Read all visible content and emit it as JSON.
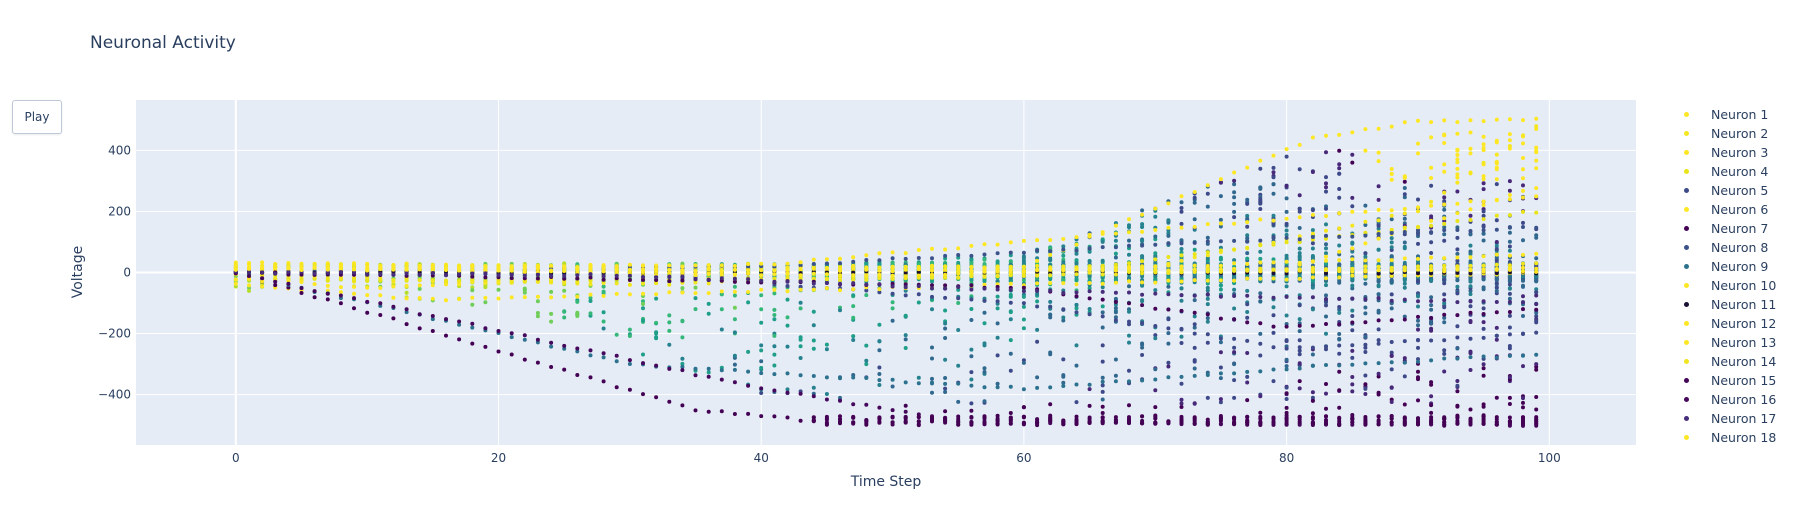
{
  "controls": {
    "play_label": "Play"
  },
  "chart_data": {
    "type": "scatter",
    "title": "Neuronal Activity",
    "xlabel": "Time Step",
    "ylabel": "Voltage",
    "xlim": [
      -7.6,
      106.6
    ],
    "ylim": [
      -565,
      565
    ],
    "x_ticks": [
      0,
      20,
      40,
      60,
      80,
      100
    ],
    "y_ticks": [
      -400,
      -200,
      0,
      200,
      400
    ],
    "grid": true,
    "legend_position": "right",
    "x_step": 1,
    "x_range": [
      0,
      99
    ],
    "colors": {
      "plot_bg": "#e5ecf6",
      "grid": "#ffffff",
      "text": "#2a3f5f"
    },
    "series": [
      {
        "name": "Neuron 1",
        "color": "#fde725",
        "envelope": {
          "x": [
            0,
            30,
            60,
            82,
            90,
            99
          ],
          "y": [
            30,
            20,
            18,
            440,
            495,
            500
          ]
        }
      },
      {
        "name": "Neuron 2",
        "color": "#f5e61f",
        "envelope": {
          "x": [
            0,
            40,
            70,
            90,
            99
          ],
          "y": [
            25,
            15,
            20,
            200,
            480
          ]
        }
      },
      {
        "name": "Neuron 3",
        "color": "#fde725",
        "envelope": {
          "x": [
            0,
            50,
            80,
            99
          ],
          "y": [
            10,
            5,
            10,
            280
          ]
        }
      },
      {
        "name": "Neuron 4",
        "color": "#e8e419",
        "envelope": {
          "x": [
            0,
            20,
            60,
            99
          ],
          "y": [
            -20,
            -30,
            -10,
            200
          ]
        }
      },
      {
        "name": "Neuron 5",
        "color": "#3e4a89",
        "envelope": {
          "x": [
            0,
            30,
            60,
            80,
            99
          ],
          "y": [
            0,
            -5,
            -100,
            -250,
            -200
          ]
        }
      },
      {
        "name": "Neuron 6",
        "color": "#fde725",
        "envelope": {
          "x": [
            0,
            15,
            40,
            99
          ],
          "y": [
            -40,
            -90,
            -60,
            0
          ]
        }
      },
      {
        "name": "Neuron 7",
        "color": "#440154",
        "envelope": {
          "x": [
            0,
            35,
            45,
            99
          ],
          "y": [
            0,
            -450,
            -490,
            -495
          ]
        }
      },
      {
        "name": "Neuron 8",
        "color": "#3b528b",
        "envelope": {
          "x": [
            0,
            40,
            70,
            99
          ],
          "y": [
            0,
            20,
            90,
            150
          ]
        }
      },
      {
        "name": "Neuron 9",
        "color": "#2c728e",
        "envelope": {
          "x": [
            0,
            30,
            60,
            85,
            99
          ],
          "y": [
            0,
            -300,
            -380,
            -300,
            -270
          ]
        }
      },
      {
        "name": "Neuron 10",
        "color": "#fde725",
        "envelope": {
          "x": [
            0,
            10,
            30,
            99
          ],
          "y": [
            -20,
            -50,
            -10,
            15
          ]
        }
      },
      {
        "name": "Neuron 11",
        "color": "#1a1033",
        "envelope": {
          "x": [
            0,
            99
          ],
          "y": [
            0,
            0
          ]
        }
      },
      {
        "name": "Neuron 12",
        "color": "#fde725",
        "envelope": {
          "x": [
            0,
            20,
            99
          ],
          "y": [
            20,
            10,
            5
          ]
        }
      },
      {
        "name": "Neuron 13",
        "color": "#fde725",
        "envelope": {
          "x": [
            0,
            50,
            99
          ],
          "y": [
            15,
            -10,
            60
          ]
        }
      },
      {
        "name": "Neuron 14",
        "color": "#f0e51e",
        "envelope": {
          "x": [
            0,
            30,
            99
          ],
          "y": [
            -10,
            -40,
            30
          ]
        }
      },
      {
        "name": "Neuron 15",
        "color": "#450457",
        "envelope": {
          "x": [
            0,
            40,
            60,
            80,
            99
          ],
          "y": [
            0,
            -30,
            -50,
            -180,
            -120
          ]
        }
      },
      {
        "name": "Neuron 16",
        "color": "#46085c",
        "envelope": {
          "x": [
            0,
            40,
            56,
            99
          ],
          "y": [
            0,
            -380,
            -490,
            -500
          ]
        }
      },
      {
        "name": "Neuron 17",
        "color": "#472d7b",
        "envelope": {
          "x": [
            0,
            30,
            60,
            99
          ],
          "y": [
            0,
            -10,
            -60,
            -100
          ]
        }
      },
      {
        "name": "Neuron 18",
        "color": "#fde725",
        "envelope": {
          "x": [
            0,
            40,
            99
          ],
          "y": [
            10,
            25,
            250
          ]
        }
      }
    ],
    "background_cloud": {
      "description_free": true,
      "palette": [
        "#fde725",
        "#b5de2b",
        "#6ece58",
        "#35b779",
        "#1f9e89",
        "#26828e",
        "#31688e",
        "#3e4989",
        "#482878",
        "#440154"
      ],
      "spread": {
        "x": [
          0,
          20,
          40,
          60,
          80,
          99
        ],
        "lo": [
          -60,
          -120,
          -400,
          -500,
          -500,
          -500
        ],
        "hi": [
          30,
          25,
          20,
          60,
          380,
          500
        ]
      }
    }
  }
}
